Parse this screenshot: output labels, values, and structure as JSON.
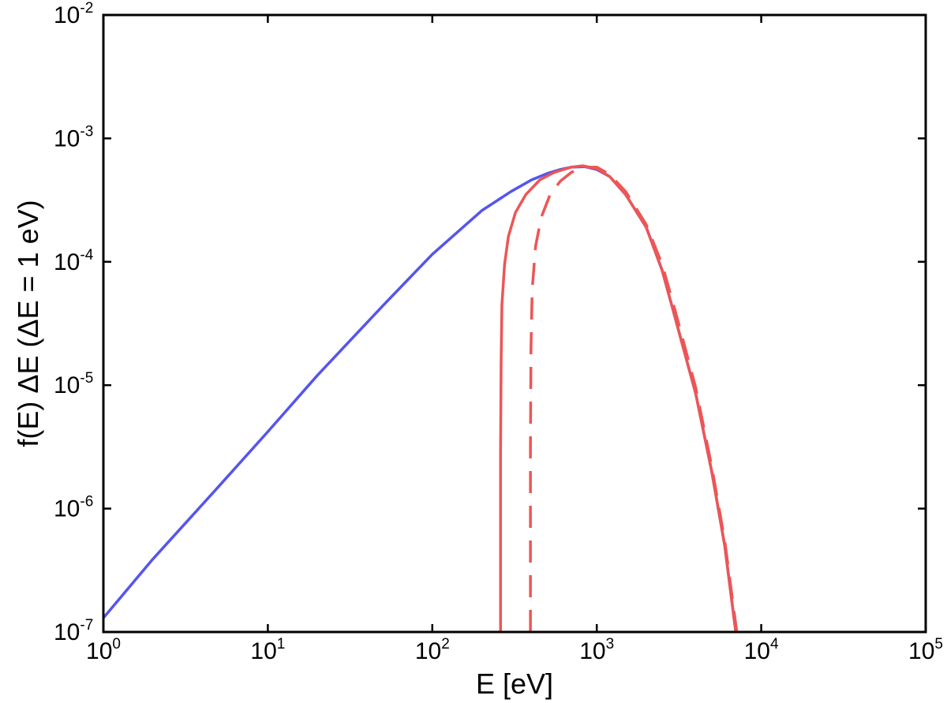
{
  "chart_data": {
    "type": "line",
    "title": "",
    "xlabel": "E [eV]",
    "ylabel": "f(E) ΔE   (ΔE = 1 eV)",
    "x_scale": "log",
    "y_scale": "log",
    "xlim": [
      1,
      100000
    ],
    "ylim": [
      1e-07,
      0.01
    ],
    "grid": false,
    "legend": "none",
    "x_ticks": [
      {
        "value": 1,
        "base": "10",
        "exp": "0"
      },
      {
        "value": 10,
        "base": "10",
        "exp": "1"
      },
      {
        "value": 100,
        "base": "10",
        "exp": "2"
      },
      {
        "value": 1000,
        "base": "10",
        "exp": "3"
      },
      {
        "value": 10000,
        "base": "10",
        "exp": "4"
      },
      {
        "value": 100000,
        "base": "10",
        "exp": "5"
      }
    ],
    "y_ticks": [
      {
        "value": 1e-07,
        "base": "10",
        "exp": "-7"
      },
      {
        "value": 1e-06,
        "base": "10",
        "exp": "-6"
      },
      {
        "value": 1e-05,
        "base": "10",
        "exp": "-5"
      },
      {
        "value": 0.0001,
        "base": "10",
        "exp": "-4"
      },
      {
        "value": 0.001,
        "base": "10",
        "exp": "-3"
      },
      {
        "value": 0.01,
        "base": "10",
        "exp": "-2"
      }
    ],
    "series": [
      {
        "color": "#5555ee",
        "style": "solid",
        "points": [
          [
            1,
            1.3e-07
          ],
          [
            2,
            3.9e-07
          ],
          [
            5,
            1.5e-06
          ],
          [
            10,
            4.2e-06
          ],
          [
            20,
            1.2e-05
          ],
          [
            50,
            4.4e-05
          ],
          [
            100,
            0.000115
          ],
          [
            200,
            0.00026
          ],
          [
            300,
            0.00037
          ],
          [
            400,
            0.00046
          ],
          [
            500,
            0.00052
          ],
          [
            600,
            0.00056
          ],
          [
            700,
            0.000585
          ],
          [
            850,
            0.00059
          ],
          [
            1000,
            0.00056
          ],
          [
            1200,
            0.00049
          ],
          [
            1500,
            0.00035
          ],
          [
            2000,
            0.00019
          ],
          [
            2500,
            8.5e-05
          ],
          [
            3000,
            3.5e-05
          ],
          [
            4000,
            8.5e-06
          ],
          [
            5000,
            2e-06
          ],
          [
            6000,
            5e-07
          ],
          [
            7000,
            1e-07
          ]
        ]
      },
      {
        "color": "#ee5555",
        "style": "solid",
        "points": [
          [
            260,
            1e-07
          ],
          [
            260,
            3e-06
          ],
          [
            262,
            1.5e-05
          ],
          [
            265,
            4.5e-05
          ],
          [
            275,
            9.5e-05
          ],
          [
            290,
            0.00016
          ],
          [
            320,
            0.00025
          ],
          [
            370,
            0.00035
          ],
          [
            450,
            0.00046
          ],
          [
            550,
            0.00053
          ],
          [
            700,
            0.000585
          ],
          [
            820,
            0.0006
          ],
          [
            1000,
            0.00057
          ],
          [
            1200,
            0.00049
          ],
          [
            1500,
            0.00035
          ],
          [
            2000,
            0.00019
          ],
          [
            2500,
            8.5e-05
          ],
          [
            3000,
            3.5e-05
          ],
          [
            4000,
            8.5e-06
          ],
          [
            5000,
            2e-06
          ],
          [
            6000,
            5e-07
          ],
          [
            7000,
            1e-07
          ]
        ]
      },
      {
        "color": "#ee5555",
        "style": "dashed",
        "points": [
          [
            395,
            1e-07
          ],
          [
            395,
            3e-06
          ],
          [
            398,
            2e-05
          ],
          [
            405,
            6e-05
          ],
          [
            425,
            0.000135
          ],
          [
            460,
            0.00023
          ],
          [
            520,
            0.00035
          ],
          [
            600,
            0.00045
          ],
          [
            700,
            0.00053
          ],
          [
            820,
            0.000585
          ],
          [
            1000,
            0.000585
          ],
          [
            1200,
            0.00051
          ],
          [
            1500,
            0.00037
          ],
          [
            2000,
            0.0002
          ],
          [
            2500,
            9.5e-05
          ],
          [
            3000,
            4e-05
          ],
          [
            4000,
            9.5e-06
          ],
          [
            5000,
            2.2e-06
          ],
          [
            6000,
            5.5e-07
          ],
          [
            7100,
            1e-07
          ]
        ]
      }
    ]
  }
}
